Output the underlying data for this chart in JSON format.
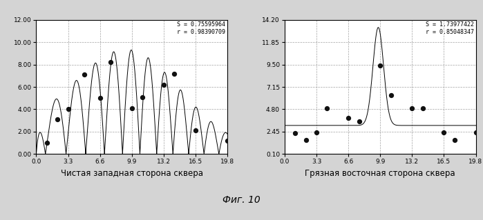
{
  "left_title": "Чистая западная сторона сквера",
  "right_title": "Грязная восточная сторона сквера",
  "fig_caption": "Фиг. 10",
  "left_stats": "S = 0.75595964\nr = 0.98390709",
  "right_stats": "S = 1.73977422\nr = 0.85048347",
  "left_xlim": [
    0.0,
    19.8
  ],
  "left_ylim": [
    0.0,
    12.0
  ],
  "left_xticks": [
    0.0,
    3.3,
    6.6,
    9.9,
    13.2,
    16.5,
    19.8
  ],
  "left_yticks": [
    0.0,
    2.0,
    4.0,
    6.0,
    8.0,
    10.0,
    12.0
  ],
  "right_xlim": [
    0.0,
    19.8
  ],
  "right_ylim": [
    0.1,
    14.2
  ],
  "right_xticks": [
    0.0,
    3.3,
    6.6,
    9.9,
    13.2,
    16.5,
    19.8
  ],
  "right_yticks": [
    0.1,
    2.45,
    4.8,
    7.15,
    9.5,
    11.85,
    14.2
  ],
  "left_points_x": [
    1.1,
    2.2,
    3.3,
    5.0,
    6.6,
    7.7,
    9.9,
    11.0,
    13.2,
    14.3,
    16.5,
    19.8
  ],
  "left_points_y": [
    1.0,
    3.1,
    4.0,
    7.1,
    5.0,
    8.2,
    4.1,
    5.1,
    6.2,
    7.2,
    2.1,
    1.2
  ],
  "right_points_x": [
    1.1,
    2.2,
    3.3,
    4.4,
    6.6,
    7.7,
    9.9,
    11.0,
    13.2,
    14.3,
    16.5,
    17.6,
    19.8
  ],
  "right_points_y": [
    2.3,
    1.6,
    2.4,
    4.9,
    3.9,
    3.5,
    9.4,
    6.3,
    4.9,
    4.9,
    2.4,
    1.6,
    2.4
  ],
  "bg_color": "#d4d4d4",
  "plot_bg_color": "#ffffff",
  "line_color": "#000000",
  "dot_color": "#111111",
  "grid_color": "#999999"
}
